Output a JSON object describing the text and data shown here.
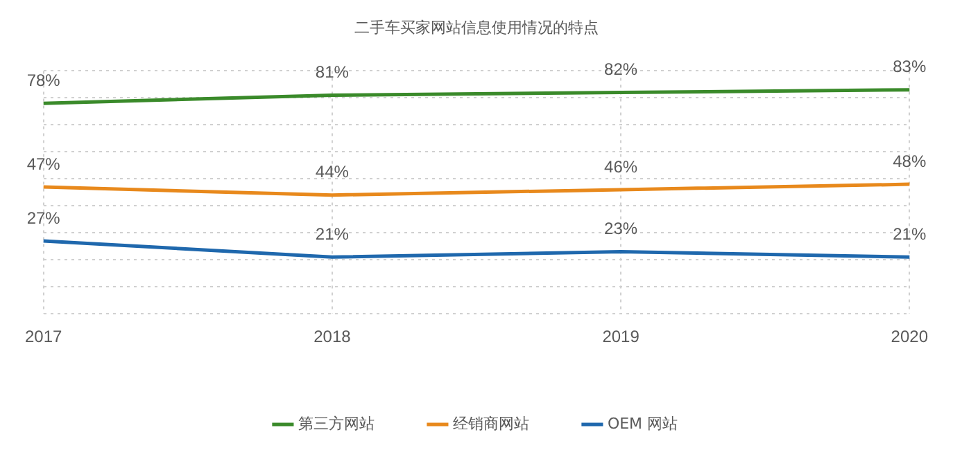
{
  "chart_data": {
    "type": "line",
    "title": "二手车买家网站信息使用情况的特点",
    "categories": [
      "2017",
      "2018",
      "2019",
      "2020"
    ],
    "series": [
      {
        "name": "第三方网站",
        "color": "#3a8a2a",
        "values": [
          78,
          81,
          82,
          83
        ],
        "value_labels": [
          "78%",
          "81%",
          "82%",
          "83%"
        ]
      },
      {
        "name": "经销商网站",
        "color": "#e8891c",
        "values": [
          47,
          44,
          46,
          48
        ],
        "value_labels": [
          "47%",
          "44%",
          "46%",
          "48%"
        ]
      },
      {
        "name": "OEM 网站",
        "color": "#1f68ad",
        "values": [
          27,
          21,
          23,
          21
        ],
        "value_labels": [
          "27%",
          "21%",
          "23%",
          "21%"
        ]
      }
    ],
    "tick_labels": "x",
    "grid": true,
    "legend": "bottom",
    "marker": "none",
    "line_style": "solid"
  }
}
